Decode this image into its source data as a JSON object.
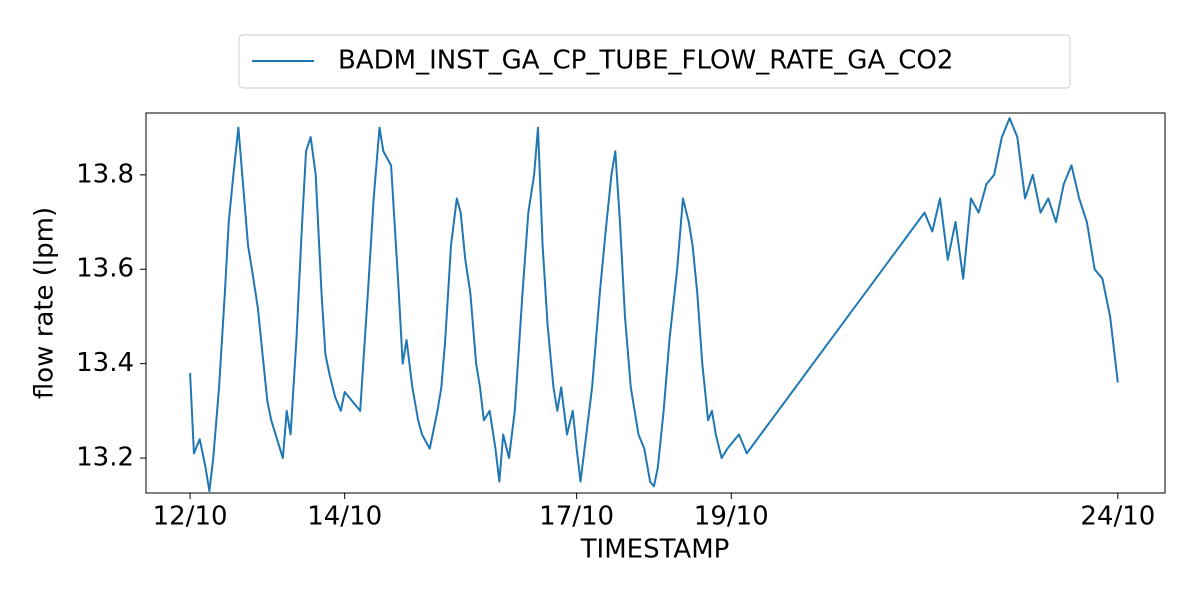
{
  "chart_data": {
    "type": "line",
    "xlabel": "TIMESTAMP",
    "ylabel": "flow rate (lpm)",
    "x": [
      12.0,
      12.05,
      12.125,
      12.2,
      12.25,
      12.3,
      12.375,
      12.45,
      12.5,
      12.56,
      12.625,
      12.7,
      12.75,
      12.8,
      12.875,
      12.95,
      13.0,
      13.05,
      13.125,
      13.2,
      13.25,
      13.3,
      13.375,
      13.45,
      13.5,
      13.56,
      13.625,
      13.7,
      13.75,
      13.8,
      13.875,
      13.95,
      14.0,
      14.1,
      14.2,
      14.3,
      14.375,
      14.45,
      14.5,
      14.6,
      14.7,
      14.75,
      14.8,
      14.875,
      14.95,
      15.0,
      15.1,
      15.2,
      15.25,
      15.3,
      15.375,
      15.45,
      15.5,
      15.56,
      15.625,
      15.7,
      15.75,
      15.8,
      15.875,
      15.95,
      16.0,
      16.05,
      16.125,
      16.2,
      16.3,
      16.375,
      16.45,
      16.5,
      16.56,
      16.625,
      16.7,
      16.75,
      16.8,
      16.875,
      16.95,
      17.0,
      17.05,
      17.125,
      17.2,
      17.3,
      17.375,
      17.45,
      17.5,
      17.56,
      17.625,
      17.7,
      17.75,
      17.8,
      17.875,
      17.95,
      18.0,
      18.05,
      18.125,
      18.2,
      18.3,
      18.375,
      18.45,
      18.5,
      18.56,
      18.625,
      18.7,
      18.75,
      18.8,
      18.875,
      18.95,
      19.0,
      19.1,
      19.2,
      21.5,
      21.6,
      21.7,
      21.8,
      21.9,
      22.0,
      22.1,
      22.2,
      22.3,
      22.4,
      22.5,
      22.6,
      22.7,
      22.8,
      22.9,
      23.0,
      23.1,
      23.2,
      23.3,
      23.4,
      23.5,
      23.6,
      23.7,
      23.8,
      23.9,
      24.0
    ],
    "series": [
      {
        "name": "BADM_INST_GA_CP_TUBE_FLOW_RATE_GA_CO2",
        "color": "#1f77b4",
        "values": [
          13.38,
          13.21,
          13.24,
          13.18,
          13.13,
          13.2,
          13.35,
          13.55,
          13.7,
          13.8,
          13.9,
          13.75,
          13.65,
          13.6,
          13.52,
          13.4,
          13.32,
          13.28,
          13.24,
          13.2,
          13.3,
          13.25,
          13.45,
          13.7,
          13.85,
          13.88,
          13.8,
          13.55,
          13.42,
          13.38,
          13.33,
          13.3,
          13.34,
          13.32,
          13.3,
          13.55,
          13.75,
          13.9,
          13.85,
          13.82,
          13.55,
          13.4,
          13.45,
          13.35,
          13.28,
          13.25,
          13.22,
          13.3,
          13.35,
          13.45,
          13.65,
          13.75,
          13.72,
          13.62,
          13.55,
          13.4,
          13.35,
          13.28,
          13.3,
          13.22,
          13.15,
          13.25,
          13.2,
          13.3,
          13.55,
          13.72,
          13.8,
          13.9,
          13.65,
          13.48,
          13.35,
          13.3,
          13.35,
          13.25,
          13.3,
          13.22,
          13.15,
          13.25,
          13.35,
          13.55,
          13.68,
          13.8,
          13.85,
          13.7,
          13.5,
          13.35,
          13.3,
          13.25,
          13.22,
          13.15,
          13.14,
          13.18,
          13.3,
          13.45,
          13.6,
          13.75,
          13.7,
          13.65,
          13.55,
          13.4,
          13.28,
          13.3,
          13.25,
          13.2,
          13.22,
          13.23,
          13.25,
          13.21,
          13.72,
          13.68,
          13.75,
          13.62,
          13.7,
          13.58,
          13.75,
          13.72,
          13.78,
          13.8,
          13.88,
          13.92,
          13.88,
          13.75,
          13.8,
          13.72,
          13.75,
          13.7,
          13.78,
          13.82,
          13.75,
          13.7,
          13.6,
          13.58,
          13.5,
          13.36
        ]
      }
    ],
    "xlim": [
      11.43,
      24.61
    ],
    "xticks": [
      {
        "value": 12,
        "label": "12/10"
      },
      {
        "value": 14,
        "label": "14/10"
      },
      {
        "value": 17,
        "label": "17/10"
      },
      {
        "value": 19,
        "label": "19/10"
      },
      {
        "value": 24,
        "label": "24/10"
      }
    ],
    "ylim": [
      13.126,
      13.931
    ],
    "yticks": [
      13.2,
      13.4,
      13.6,
      13.8
    ],
    "legend": "top"
  }
}
